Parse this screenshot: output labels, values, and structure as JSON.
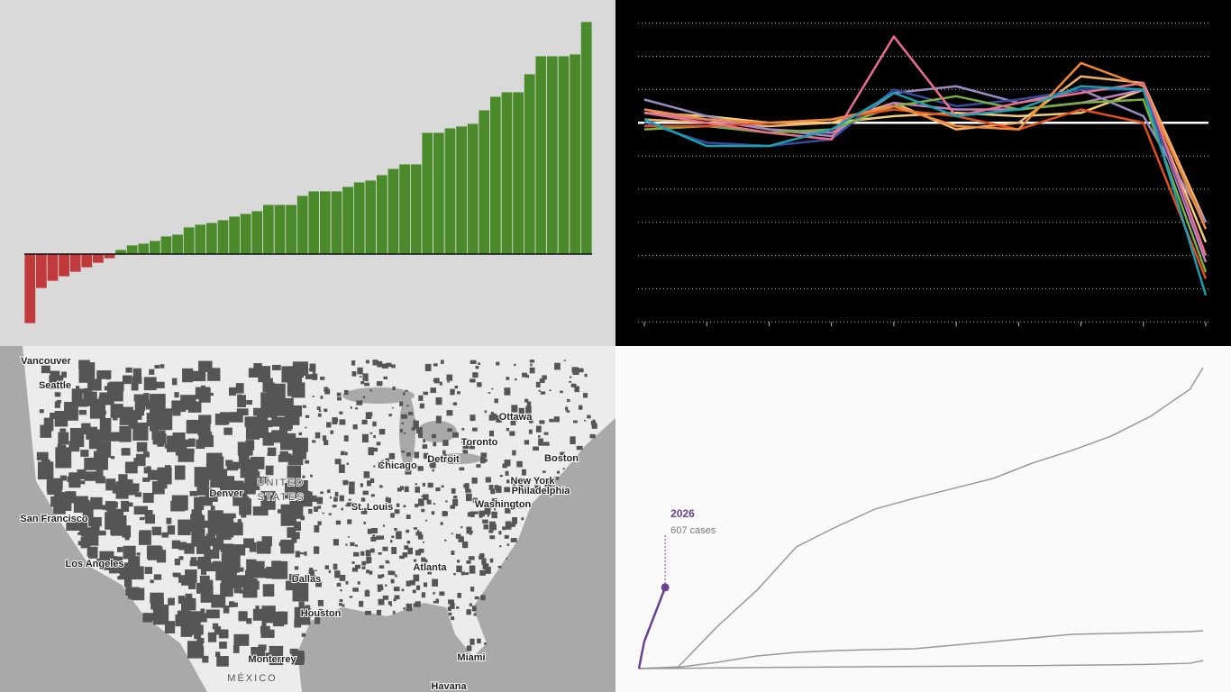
{
  "chart_data": [
    {
      "type": "bar",
      "values": [
        -77,
        -38,
        -30,
        -25,
        -20,
        -15,
        -10,
        -5,
        5,
        10,
        12,
        15,
        20,
        22,
        30,
        33,
        35,
        38,
        42,
        45,
        48,
        55,
        55,
        55,
        65,
        70,
        70,
        70,
        75,
        80,
        82,
        88,
        95,
        100,
        100,
        135,
        135,
        140,
        142,
        145,
        160,
        175,
        180,
        180,
        200,
        220,
        220,
        220,
        222,
        258
      ],
      "negative_color": "#c0393b",
      "color": "#4a8a2a",
      "ylim": [
        -101,
        282
      ]
    },
    {
      "type": "line",
      "ylim": [
        -67,
        37
      ],
      "yticks": [
        -60,
        -50,
        -40,
        -30,
        -20,
        -10,
        0,
        10,
        20,
        30
      ],
      "grid": true,
      "series": [
        {
          "color": "#f0b070",
          "values": [
            1,
            0,
            -1,
            0,
            6,
            -2,
            0,
            14,
            12,
            -30
          ]
        },
        {
          "color": "#f0d080",
          "values": [
            3,
            2,
            0,
            0,
            2,
            3,
            2,
            3,
            10,
            -36
          ]
        },
        {
          "color": "#c080c0",
          "values": [
            3,
            1,
            -2,
            -3,
            6,
            4,
            4,
            6,
            10,
            -42
          ]
        },
        {
          "color": "#9a8cc0",
          "values": [
            7,
            2,
            -2,
            -4,
            9,
            11,
            6,
            10,
            2,
            -30
          ]
        },
        {
          "color": "#3a4a9a",
          "values": [
            0,
            -6,
            -7,
            -5,
            10,
            5,
            7,
            10,
            10,
            -40
          ]
        },
        {
          "color": "#7ab040",
          "values": [
            -2,
            -1,
            -3,
            -2,
            5,
            8,
            4,
            6,
            7,
            -45
          ]
        },
        {
          "color": "#e05020",
          "values": [
            -1,
            -1,
            0,
            1,
            4,
            2,
            -2,
            4,
            0,
            -47
          ]
        },
        {
          "color": "#f08a3c",
          "values": [
            4,
            1,
            0,
            1,
            5,
            -1,
            -2,
            18,
            11,
            -32
          ]
        },
        {
          "color": "#e8708a",
          "values": [
            3,
            0,
            -3,
            -5,
            26,
            2,
            6,
            9,
            12,
            -40
          ]
        },
        {
          "color": "#1aa0b0",
          "values": [
            1,
            -7,
            -7,
            -2,
            9,
            2,
            4,
            11,
            10,
            -52
          ]
        }
      ]
    },
    {
      "type": "line",
      "xlim": [
        0,
        43
      ],
      "ylim": [
        0,
        2372
      ],
      "series": [
        {
          "color": "#999999",
          "x": [
            0,
            3,
            6,
            9,
            12,
            15,
            18,
            21,
            24,
            27,
            30,
            33,
            36,
            39,
            42,
            43
          ],
          "values": [
            0,
            13,
            317,
            586,
            910,
            1058,
            1193,
            1274,
            1348,
            1422,
            1537,
            1631,
            1739,
            1887,
            2089,
            2251
          ]
        },
        {
          "color": "#999999",
          "x": [
            0,
            3,
            6,
            9,
            12,
            15,
            18,
            21,
            24,
            27,
            30,
            33,
            36,
            39,
            42,
            43
          ],
          "values": [
            0,
            10,
            47,
            94,
            121,
            135,
            142,
            148,
            175,
            202,
            229,
            256,
            263,
            270,
            276,
            283
          ]
        },
        {
          "color": "#999999",
          "x": [
            0,
            3,
            6,
            9,
            12,
            15,
            18,
            21,
            24,
            27,
            30,
            33,
            36,
            39,
            42,
            43
          ],
          "values": [
            0,
            2,
            5,
            8,
            10,
            12,
            14,
            16,
            18,
            20,
            22,
            25,
            28,
            32,
            40,
            60
          ]
        },
        {
          "name": "2026",
          "color": "#6b3f8f",
          "x": [
            0,
            0.4,
            2
          ],
          "values": [
            0,
            200,
            607
          ]
        }
      ],
      "annotation": "607 cases"
    }
  ],
  "map": {
    "labels": [
      "Vancouver",
      "Seattle",
      "Ottawa",
      "Toronto",
      "Boston",
      "Detroit",
      "Chicago",
      "New York",
      "Philadelphia",
      "Washington",
      "Denver",
      "UNITED",
      "STATES",
      "St. Louis",
      "San Francisco",
      "Los Angeles",
      "Dallas",
      "Atlanta",
      "Houston",
      "Miami",
      "Monterrey",
      "MÉXICO",
      "Havana"
    ]
  }
}
